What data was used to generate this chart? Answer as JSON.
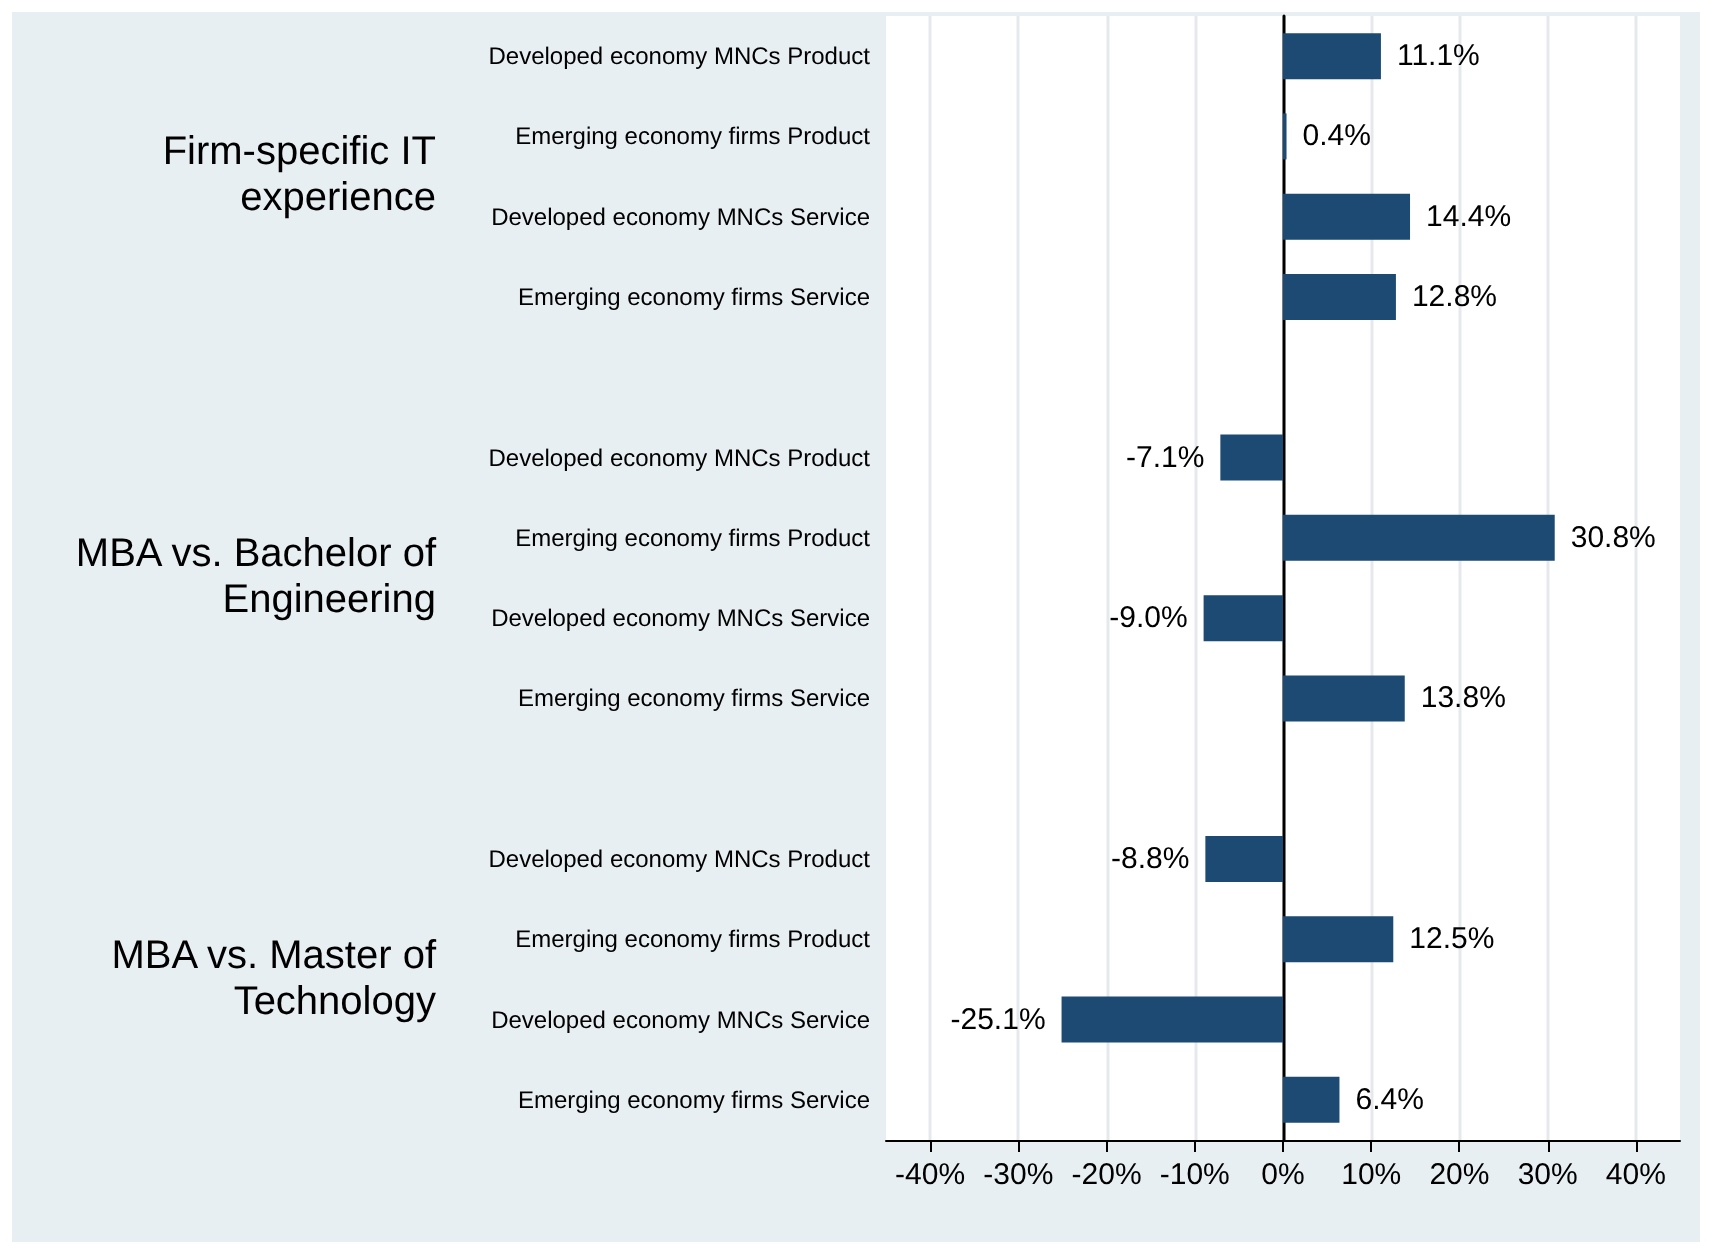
{
  "chart_data": {
    "type": "bar",
    "orientation": "horizontal",
    "categories": [
      "Developed economy MNCs Product",
      "Emerging economy firms Product",
      "Developed economy MNCs Service",
      "Emerging economy firms Service",
      null,
      "Developed economy MNCs Product",
      "Emerging economy firms Product",
      "Developed economy MNCs Service",
      "Emerging economy firms Service",
      null,
      "Developed economy MNCs Product",
      "Emerging economy firms Product",
      "Developed economy MNCs Service",
      "Emerging economy firms Service"
    ],
    "values": [
      11.1,
      0.4,
      14.4,
      12.8,
      null,
      -7.1,
      30.8,
      -9.0,
      13.8,
      null,
      -8.8,
      12.5,
      -25.1,
      6.4
    ],
    "value_labels": [
      "11.1%",
      "0.4%",
      "14.4%",
      "12.8%",
      null,
      "-7.1%",
      "30.8%",
      "-9.0%",
      "13.8%",
      null,
      "-8.8%",
      "12.5%",
      "-25.1%",
      "6.4%"
    ],
    "color": "#1c4a73",
    "xlim": [
      -45,
      45
    ],
    "xticks": [
      {
        "value": -40,
        "label": "-40%"
      },
      {
        "value": -30,
        "label": "-30%"
      },
      {
        "value": -20,
        "label": "-20%"
      },
      {
        "value": -10,
        "label": "-10%"
      },
      {
        "value": 0,
        "label": "0%"
      },
      {
        "value": 10,
        "label": "10%"
      },
      {
        "value": 20,
        "label": "20%"
      },
      {
        "value": 30,
        "label": "30%"
      },
      {
        "value": 40,
        "label": "40%"
      }
    ],
    "annotations": [
      "Firm-specific IT experience",
      "MBA vs. Bachelor of Engineering",
      "MBA vs. Master of Technology"
    ],
    "grid": "x"
  }
}
